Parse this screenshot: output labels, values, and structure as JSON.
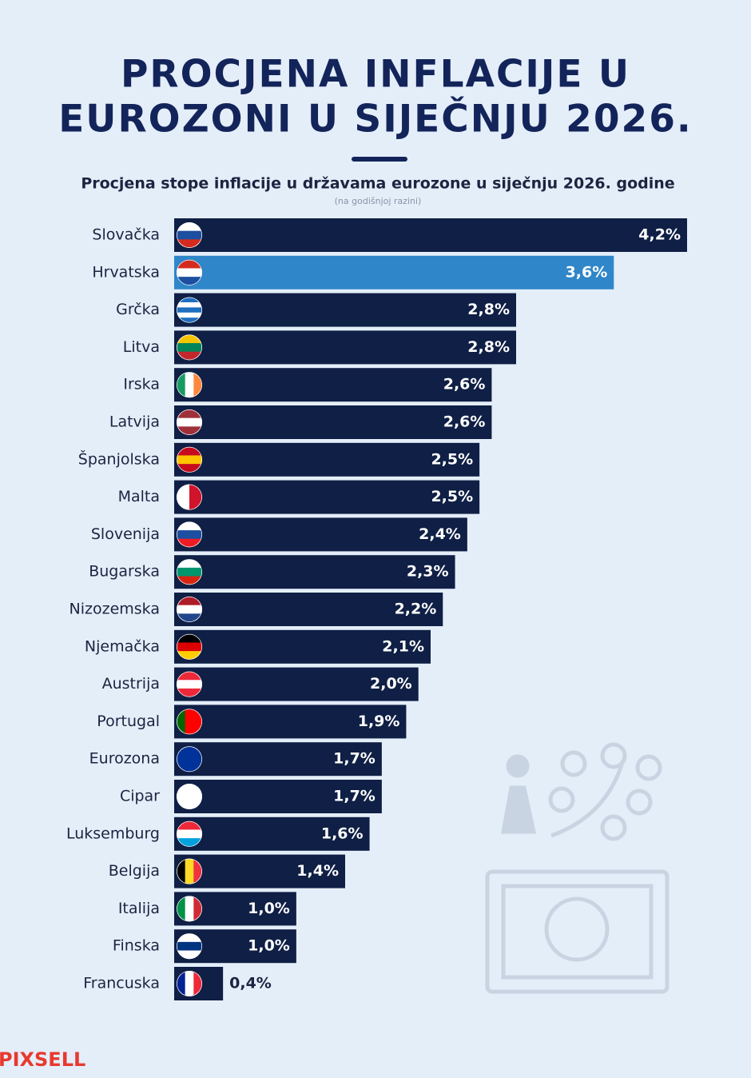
{
  "chart_data": {
    "type": "bar",
    "orientation": "horizontal",
    "title": [
      "PROCJENA INFLACIJE U",
      "EUROZONI U SIJEČNJU 2026."
    ],
    "subtitle": "Procjena stope inflacije u državama eurozone u siječnju 2026. godine",
    "note": "(na godišnjoj razini)",
    "categories": [
      "Slovačka",
      "Hrvatska",
      "Grčka",
      "Litva",
      "Irska",
      "Latvija",
      "Španjolska",
      "Malta",
      "Slovenija",
      "Bugarska",
      "Nizozemska",
      "Njemačka",
      "Austrija",
      "Portugal",
      "Eurozona",
      "Cipar",
      "Luksemburg",
      "Belgija",
      "Italija",
      "Finska",
      "Francuska"
    ],
    "values": [
      4.2,
      3.6,
      2.8,
      2.8,
      2.6,
      2.6,
      2.5,
      2.5,
      2.4,
      2.3,
      2.2,
      2.1,
      2.0,
      1.9,
      1.7,
      1.7,
      1.6,
      1.4,
      1.0,
      1.0,
      0.4
    ],
    "value_labels": [
      "4,2%",
      "3,6%",
      "2,8%",
      "2,8%",
      "2,6%",
      "2,6%",
      "2,5%",
      "2,5%",
      "2,4%",
      "2,3%",
      "2,2%",
      "2,1%",
      "2,0%",
      "1,9%",
      "1,7%",
      "1,7%",
      "1,6%",
      "1,4%",
      "1,0%",
      "1,0%",
      "0,4%"
    ],
    "colors": [
      "#0f1f45",
      "#2f86c8",
      "#0f1f45",
      "#0f1f45",
      "#0f1f45",
      "#0f1f45",
      "#0f1f45",
      "#0f1f45",
      "#0f1f45",
      "#0f1f45",
      "#0f1f45",
      "#0f1f45",
      "#0f1f45",
      "#0f1f45",
      "#0f1f45",
      "#0f1f45",
      "#0f1f45",
      "#0f1f45",
      "#0f1f45",
      "#0f1f45",
      "#0f1f45"
    ]
  },
  "credit": "PIXSELL"
}
